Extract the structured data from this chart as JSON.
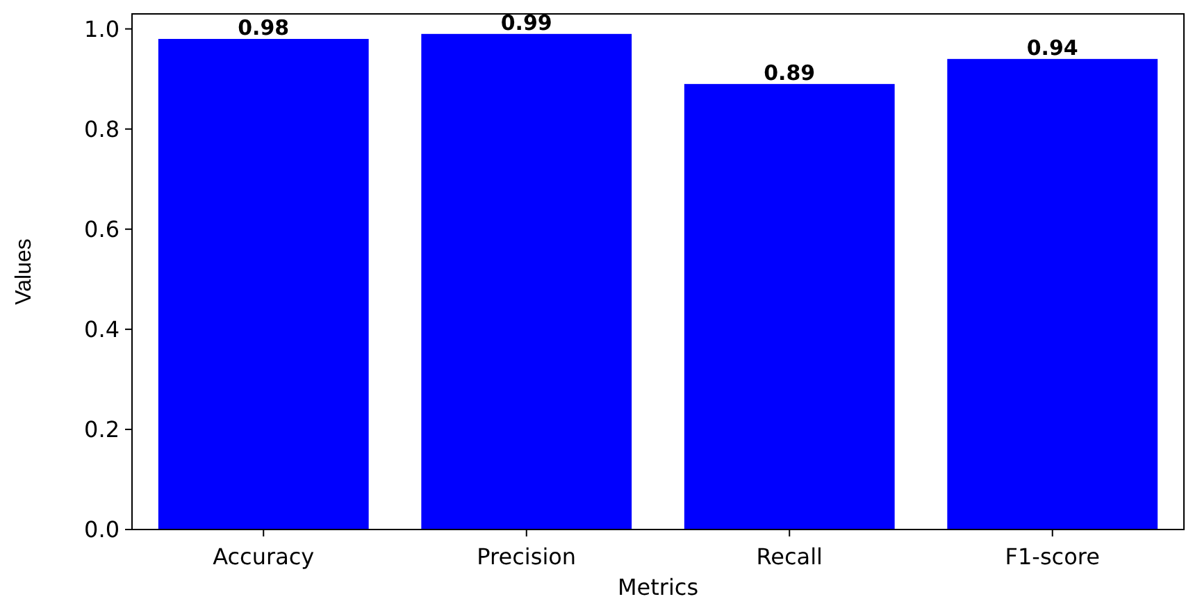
{
  "chart_data": {
    "type": "bar",
    "xlabel": "Metrics",
    "ylabel": "Values",
    "categories": [
      "Accuracy",
      "Precision",
      "Recall",
      "F1-score"
    ],
    "values": [
      0.98,
      0.99,
      0.89,
      0.94
    ],
    "color": "#0000ff",
    "ylim": [
      0,
      1.03
    ],
    "yticks": [
      {
        "value": 0,
        "label": "0.0"
      },
      {
        "value": 0.2,
        "label": "0.2"
      },
      {
        "value": 0.4,
        "label": "0.4"
      },
      {
        "value": 0.6,
        "label": "0.6"
      },
      {
        "value": 0.8,
        "label": "0.8"
      },
      {
        "value": 1,
        "label": "1.0"
      }
    ],
    "data_labels": true
  }
}
